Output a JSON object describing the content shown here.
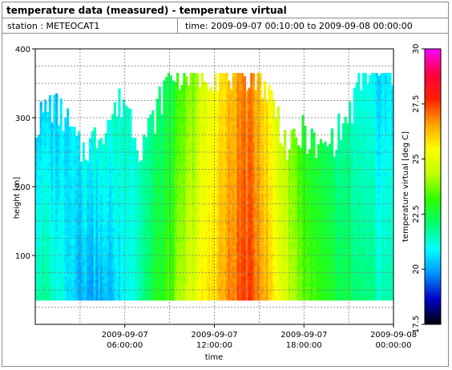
{
  "title": "temperature data (measured) - temperature virtual",
  "station": "station : METEOCAT1",
  "time_range": "time: 2009-09-07 00:10:00 to 2009-09-08 00:00:00",
  "colors": {
    "colormap": [
      "#000000",
      "#0000c8",
      "#0090ff",
      "#00ffff",
      "#00ff70",
      "#30ff00",
      "#c0ff00",
      "#ffff00",
      "#ffa000",
      "#ff2000",
      "#ff0040",
      "#ff00ff"
    ]
  },
  "chart_data": {
    "type": "heatmap",
    "xlabel": "time",
    "ylabel": "height [m]",
    "colorbar_label": "temperature virtual [deg C]",
    "xlim_hours": [
      0,
      24
    ],
    "ylim": [
      0,
      400
    ],
    "x_ticks": [
      {
        "hour": 6,
        "line1": "2009-09-07",
        "line2": "06:00:00"
      },
      {
        "hour": 12,
        "line1": "2009-09-07",
        "line2": "12:00:00"
      },
      {
        "hour": 18,
        "line1": "2009-09-07",
        "line2": "18:00:00"
      },
      {
        "hour": 24,
        "line1": "2009-09-08",
        "line2": "00:00:00"
      }
    ],
    "y_ticks": [
      100,
      200,
      300,
      400
    ],
    "colorbar_range": [
      17.5,
      30
    ],
    "colorbar_ticks": [
      "17.5",
      "20",
      "22.5",
      "25",
      "27.5",
      "30"
    ],
    "data_height_min": 35,
    "data_height_max": 365,
    "time_hours": [
      0,
      1,
      2,
      3,
      4,
      5,
      6,
      7,
      8,
      9,
      10,
      11,
      12,
      13,
      14,
      15,
      16,
      17,
      18,
      19,
      20,
      21,
      22,
      23,
      24
    ],
    "top_height_m": [
      290,
      320,
      300,
      250,
      270,
      300,
      330,
      260,
      300,
      365,
      365,
      365,
      365,
      365,
      365,
      365,
      320,
      250,
      280,
      250,
      270,
      300,
      365,
      365,
      365
    ],
    "surface_temp_degC": [
      21.8,
      21.5,
      21.0,
      20.3,
      20.0,
      20.2,
      20.9,
      21.7,
      22.6,
      23.3,
      24.3,
      25.3,
      26.0,
      26.7,
      27.5,
      27.0,
      25.6,
      24.5,
      23.6,
      23.0,
      22.5,
      22.2,
      21.8,
      21.6,
      21.5
    ],
    "temp_drop_per_100m": [
      0.5,
      0.4,
      0.1,
      -0.3,
      -0.5,
      -0.4,
      -0.2,
      0.1,
      0.3,
      0.3,
      0.3,
      0.3,
      0.2,
      0.2,
      0.2,
      0.2,
      0.2,
      0.2,
      0.3,
      0.3,
      0.3,
      0.3,
      0.3,
      0.3,
      0.3
    ]
  }
}
